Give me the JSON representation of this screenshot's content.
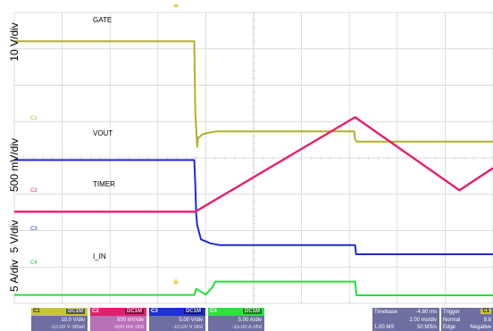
{
  "axis_labels": {
    "ch1": "10 V/div",
    "ch2": "500 mV/div",
    "ch3": "5 V/div",
    "ch4": "5 A/div"
  },
  "trace_labels": {
    "gate": "GATE",
    "vout": "VOUT",
    "timer": "TIMER",
    "i_in": "I_IN"
  },
  "markers": {
    "c1": "C1",
    "c2": "C2",
    "c3": "C3",
    "c4": "C4"
  },
  "channels": [
    {
      "tag": "C1",
      "chip": "DC1M",
      "scale": "10.0 V/div",
      "offset": "-10.00 V offset",
      "color": "#c8c43c"
    },
    {
      "tag": "C2",
      "chip": "DC1M",
      "scale": "500 mV/div",
      "offset": "-500 mV ofst",
      "color": "#e0206e"
    },
    {
      "tag": "C3",
      "chip": "DC1M",
      "scale": "5.00 V/div",
      "offset": "-10.00 V ofst",
      "color": "#2030d8"
    },
    {
      "tag": "C4",
      "chip": "DC1M",
      "scale": "5.00 A/div",
      "offset": "-15.00 A ofst",
      "color": "#30e040"
    }
  ],
  "timebase": {
    "label": "Timebase",
    "delay": "-4.80 ms",
    "scale": "2.00 ms/div",
    "samples": "1.00 MS",
    "rate": "50 MS/s"
  },
  "trigger": {
    "label": "Trigger",
    "channel": "C1",
    "mode": "Normal",
    "level": "9.8",
    "type": "Edge",
    "slope": "Negative"
  },
  "colors": {
    "gate": "#b4b02a",
    "vout": "#1c2ad0",
    "timer": "#e41e72",
    "i_in": "#22e03a",
    "grid": "#d0d0d0",
    "panel_bg": "#6e6ea0"
  },
  "chart_data": {
    "type": "line",
    "title": "",
    "xlabel": "",
    "ylabel": "",
    "x_unit_per_div": "2.00 ms/div",
    "x_divisions": 10,
    "y_divisions": 8,
    "grid": true,
    "series": [
      {
        "name": "GATE",
        "color_key": "gate",
        "x_div": [
          0,
          3.76,
          3.78,
          3.82,
          3.84,
          3.95,
          4.2,
          7.1,
          7.12,
          7.15,
          10
        ],
        "y_div": [
          7.21,
          7.21,
          5.3,
          4.3,
          4.55,
          4.66,
          4.73,
          4.73,
          4.5,
          4.45,
          4.45
        ]
      },
      {
        "name": "VOUT",
        "color_key": "vout",
        "x_div": [
          0,
          3.76,
          3.78,
          3.8,
          3.82,
          3.9,
          4.1,
          4.3,
          7.12,
          7.14,
          10
        ],
        "y_div": [
          3.94,
          3.94,
          3.3,
          2.45,
          2.15,
          1.76,
          1.65,
          1.6,
          1.6,
          1.35,
          1.35
        ]
      },
      {
        "name": "TIMER",
        "color_key": "timer",
        "x_div": [
          0,
          3.78,
          7.12,
          9.3,
          10
        ],
        "y_div": [
          2.52,
          2.52,
          5.12,
          3.11,
          3.72
        ]
      },
      {
        "name": "I_IN",
        "color_key": "i_in",
        "x_div": [
          0,
          3.76,
          3.8,
          4.0,
          4.14,
          4.2,
          7.12,
          7.15,
          10
        ],
        "y_div": [
          0.23,
          0.23,
          0.4,
          0.24,
          0.45,
          0.6,
          0.6,
          0.22,
          0.22
        ]
      }
    ]
  }
}
